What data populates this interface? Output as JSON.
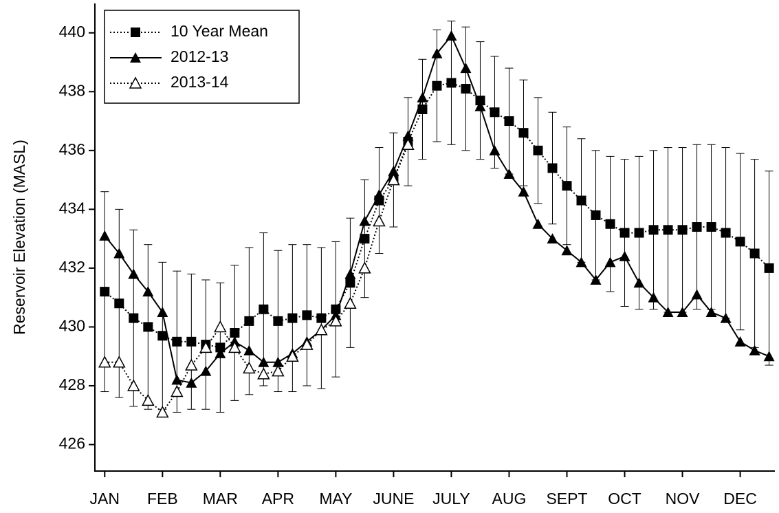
{
  "chart_data": {
    "type": "line",
    "ylabel": "Reservoir Elevation (MASL)",
    "x": [
      0,
      0.25,
      0.5,
      0.75,
      1,
      1.25,
      1.5,
      1.75,
      2,
      2.25,
      2.5,
      2.75,
      3,
      3.25,
      3.5,
      3.75,
      4,
      4.25,
      4.5,
      4.75,
      5,
      5.25,
      5.5,
      5.75,
      6,
      6.25,
      6.5,
      6.75,
      7,
      7.25,
      7.5,
      7.75,
      8,
      8.25,
      8.5,
      8.75,
      9,
      9.25,
      9.5,
      9.75,
      10,
      10.25,
      10.5,
      10.75,
      11,
      11.25,
      11.5
    ],
    "xlim": [
      -0.17,
      11.6
    ],
    "xticks": [
      {
        "value": 0,
        "label": "JAN"
      },
      {
        "value": 1,
        "label": "FEB"
      },
      {
        "value": 2,
        "label": "MAR"
      },
      {
        "value": 3,
        "label": "APR"
      },
      {
        "value": 4,
        "label": "MAY"
      },
      {
        "value": 5,
        "label": "JUNE"
      },
      {
        "value": 6,
        "label": "JULY"
      },
      {
        "value": 7,
        "label": "AUG"
      },
      {
        "value": 8,
        "label": "SEPT"
      },
      {
        "value": 9,
        "label": "OCT"
      },
      {
        "value": 10,
        "label": "NOV"
      },
      {
        "value": 11,
        "label": "DEC"
      }
    ],
    "ylim": [
      425.1,
      441.0
    ],
    "yticks": [
      426,
      428,
      430,
      432,
      434,
      436,
      438,
      440
    ],
    "legend": "upper left",
    "series": [
      {
        "name": "10 Year Mean",
        "color": "#000000",
        "marker": "square",
        "line_style": "dotted",
        "values": [
          431.2,
          430.8,
          430.3,
          430.0,
          429.7,
          429.5,
          429.5,
          429.4,
          429.3,
          429.8,
          430.2,
          430.6,
          430.2,
          430.3,
          430.4,
          430.3,
          430.6,
          431.5,
          433,
          434.3,
          435,
          436.3,
          437.4,
          438.2,
          438.3,
          438.1,
          437.7,
          437.3,
          437,
          436.6,
          436,
          435.4,
          434.8,
          434.3,
          433.8,
          433.5,
          433.2,
          433.2,
          433.3,
          433.3,
          433.3,
          433.4,
          433.4,
          433.2,
          432.9,
          432.5,
          432.0
        ],
        "errors": [
          3.4,
          3.2,
          3.0,
          2.8,
          2.5,
          2.4,
          2.3,
          2.2,
          2.2,
          2.3,
          2.5,
          2.6,
          2.4,
          2.5,
          2.4,
          2.4,
          2.3,
          2.2,
          2.0,
          1.8,
          1.6,
          1.5,
          1.7,
          1.9,
          2.1,
          2.1,
          2.0,
          1.9,
          1.8,
          1.8,
          1.8,
          1.9,
          2.0,
          2.1,
          2.2,
          2.3,
          2.5,
          2.6,
          2.7,
          2.8,
          2.8,
          2.8,
          2.8,
          2.9,
          3.0,
          3.2,
          3.3
        ]
      },
      {
        "name": "2012-13",
        "color": "#000000",
        "marker": "triangle",
        "line_style": "solid",
        "values": [
          433.1,
          432.5,
          431.8,
          431.2,
          430.5,
          428.2,
          428.1,
          428.5,
          429.1,
          429.5,
          429.2,
          428.8,
          428.8,
          429.1,
          429.5,
          429.9,
          430.4,
          431.8,
          433.6,
          434.5,
          435.3,
          436.5,
          437.8,
          439.3,
          439.9,
          438.8,
          437.5,
          436,
          435.2,
          434.6,
          433.5,
          433,
          432.6,
          432.2,
          431.6,
          432.2,
          432.4,
          431.5,
          431,
          430.5,
          430.5,
          431.1,
          430.5,
          430.3,
          429.5,
          429.2,
          429.0
        ]
      },
      {
        "name": "2013-14",
        "color": "#000000",
        "marker": "triangle-open",
        "line_style": "dotted",
        "values": [
          428.8,
          428.8,
          428.0,
          427.5,
          427.1,
          427.8,
          428.7,
          429.3,
          430.0,
          429.3,
          428.6,
          428.4,
          428.5,
          429.0,
          429.4,
          429.9,
          430.2,
          430.8,
          432,
          433.6,
          435,
          436.2,
          null,
          null,
          null,
          null,
          null,
          null,
          null,
          null,
          null,
          null,
          null,
          null,
          null,
          null,
          null,
          null,
          null,
          null,
          null,
          null,
          null,
          null,
          null,
          null,
          null
        ]
      }
    ]
  }
}
